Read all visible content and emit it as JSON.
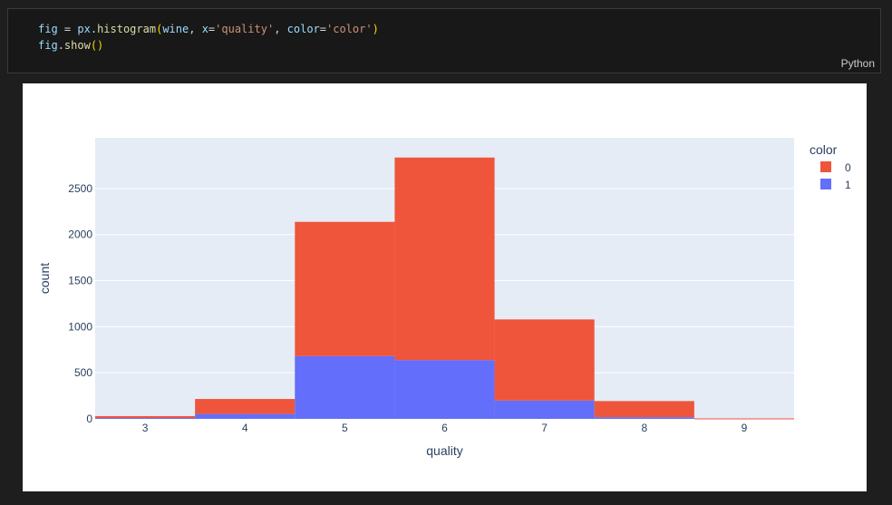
{
  "code_cell": {
    "line1": {
      "var": "fig",
      "eq": " = ",
      "module": "px",
      "dot": ".",
      "fn": "histogram",
      "open": "(",
      "arg1": "wine",
      "sep1": ", ",
      "kw1": "x",
      "eq1": "=",
      "str1": "'quality'",
      "sep2": ", ",
      "kw2": "color",
      "eq2": "=",
      "str2": "'color'",
      "close": ")"
    },
    "line2": {
      "var": "fig",
      "dot": ".",
      "fn": "show",
      "parens": "()"
    },
    "language": "Python"
  },
  "chart_data": {
    "type": "bar",
    "stacked": true,
    "categories": [
      "3",
      "4",
      "5",
      "6",
      "7",
      "8",
      "9"
    ],
    "series": [
      {
        "name": "1",
        "color": "#636efa",
        "values": [
          10,
          53,
          681,
          638,
          199,
          18,
          0
        ]
      },
      {
        "name": "0",
        "color": "#ef553b",
        "values": [
          20,
          163,
          1457,
          2198,
          880,
          175,
          5
        ]
      }
    ],
    "xlabel": "quality",
    "ylabel": "count",
    "ylim": [
      0,
      3050
    ],
    "yticks": [
      0,
      500,
      1000,
      1500,
      2000,
      2500
    ],
    "legend_title": "color",
    "legend_position": "right",
    "grid": true
  }
}
